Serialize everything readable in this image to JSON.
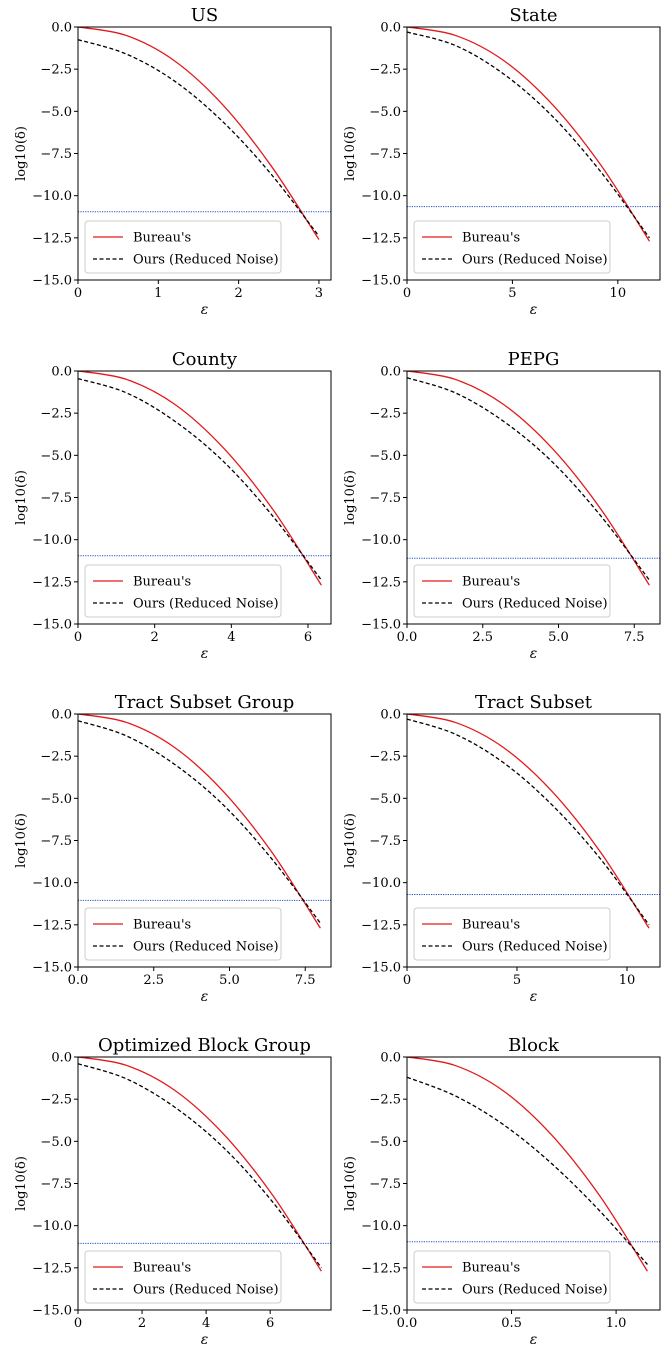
{
  "figure": {
    "xlabel": "ε",
    "ylabel": "log10(δ)",
    "legend": [
      "Bureau's",
      "Ours (Reduced Noise)"
    ],
    "legend_location": "lower-left",
    "colors": {
      "bureau": "#e31a1c",
      "ours": "#000000",
      "threshold": "#1f4fd1"
    }
  },
  "chart_data": [
    {
      "type": "line",
      "title": "US",
      "xlabel": "ε",
      "ylabel": "log10(δ)",
      "xlim": [
        0,
        3.15
      ],
      "ylim": [
        -15,
        0
      ],
      "xticks": [
        0,
        1,
        2,
        3
      ],
      "xtick_labels": [
        "0",
        "1",
        "2",
        "3"
      ],
      "yticks": [
        0,
        -2.5,
        -5,
        -7.5,
        -10,
        -12.5,
        -15
      ],
      "ytick_labels": [
        "0.0",
        "−2.5",
        "−5.0",
        "−7.5",
        "−10.0",
        "−12.5",
        "−15.0"
      ],
      "threshold": -10.95,
      "series": [
        {
          "name": "Bureau's",
          "style": "solid",
          "x": [
            0,
            0.6,
            1.2,
            1.8,
            2.4,
            3.0
          ],
          "y": [
            0,
            -0.5,
            -2.0,
            -4.6,
            -8.2,
            -12.6
          ]
        },
        {
          "name": "Ours (Reduced Noise)",
          "style": "dashed",
          "x": [
            0,
            0.6,
            1.2,
            1.8,
            2.4,
            3.0
          ],
          "y": [
            -0.75,
            -1.6,
            -3.2,
            -5.6,
            -8.7,
            -12.4
          ]
        }
      ],
      "legend_location": "lower-left"
    },
    {
      "type": "line",
      "title": "State",
      "xlabel": "ε",
      "ylabel": "log10(δ)",
      "xlim": [
        0,
        12.0
      ],
      "ylim": [
        -15,
        0
      ],
      "xticks": [
        0,
        5,
        10
      ],
      "xtick_labels": [
        "0",
        "5",
        "10"
      ],
      "yticks": [
        0,
        -2.5,
        -5,
        -7.5,
        -10,
        -12.5,
        -15
      ],
      "ytick_labels": [
        "0.0",
        "−2.5",
        "−5.0",
        "−7.5",
        "−10.0",
        "−12.5",
        "−15.0"
      ],
      "threshold": -10.65,
      "series": [
        {
          "name": "Bureau's",
          "style": "solid",
          "x": [
            0,
            2.3,
            4.6,
            6.9,
            9.2,
            11.5
          ],
          "y": [
            0,
            -0.5,
            -2.0,
            -4.6,
            -8.2,
            -12.7
          ]
        },
        {
          "name": "Ours (Reduced Noise)",
          "style": "dashed",
          "x": [
            0,
            2.3,
            4.6,
            6.9,
            9.2,
            11.5
          ],
          "y": [
            -0.3,
            -1.1,
            -2.8,
            -5.3,
            -8.6,
            -12.5
          ]
        }
      ],
      "legend_location": "lower-left"
    },
    {
      "type": "line",
      "title": "County",
      "xlabel": "ε",
      "ylabel": "log10(δ)",
      "xlim": [
        0,
        6.6
      ],
      "ylim": [
        -15,
        0
      ],
      "xticks": [
        0,
        2,
        4,
        6
      ],
      "xtick_labels": [
        "0",
        "2",
        "4",
        "6"
      ],
      "yticks": [
        0,
        -2.5,
        -5,
        -7.5,
        -10,
        -12.5,
        -15
      ],
      "ytick_labels": [
        "0.0",
        "−2.5",
        "−5.0",
        "−7.5",
        "−10.0",
        "−12.5",
        "−15.0"
      ],
      "threshold": -10.95,
      "series": [
        {
          "name": "Bureau's",
          "style": "solid",
          "x": [
            0,
            1.27,
            2.54,
            3.81,
            5.08,
            6.35
          ],
          "y": [
            0,
            -0.5,
            -2.0,
            -4.6,
            -8.2,
            -12.7
          ]
        },
        {
          "name": "Ours (Reduced Noise)",
          "style": "dashed",
          "x": [
            0,
            1.27,
            2.54,
            3.81,
            5.08,
            6.35
          ],
          "y": [
            -0.45,
            -1.3,
            -3.0,
            -5.4,
            -8.6,
            -12.4
          ]
        }
      ],
      "legend_location": "lower-left"
    },
    {
      "type": "line",
      "title": "PEPG",
      "xlabel": "ε",
      "ylabel": "log10(δ)",
      "xlim": [
        0,
        8.35
      ],
      "ylim": [
        -15,
        0
      ],
      "xticks": [
        0,
        2.5,
        5,
        7.5
      ],
      "xtick_labels": [
        "0.0",
        "2.5",
        "5.0",
        "7.5"
      ],
      "yticks": [
        0,
        -2.5,
        -5,
        -7.5,
        -10,
        -12.5,
        -15
      ],
      "ytick_labels": [
        "0.0",
        "−2.5",
        "−5.0",
        "−7.5",
        "−10.0",
        "−12.5",
        "−15.0"
      ],
      "threshold": -11.1,
      "series": [
        {
          "name": "Bureau's",
          "style": "solid",
          "x": [
            0,
            1.6,
            3.2,
            4.8,
            6.4,
            8.0
          ],
          "y": [
            0,
            -0.5,
            -2.0,
            -4.6,
            -8.2,
            -12.7
          ]
        },
        {
          "name": "Ours (Reduced Noise)",
          "style": "dashed",
          "x": [
            0,
            1.6,
            3.2,
            4.8,
            6.4,
            8.0
          ],
          "y": [
            -0.4,
            -1.3,
            -3.0,
            -5.4,
            -8.6,
            -12.4
          ]
        }
      ],
      "legend_location": "lower-left"
    },
    {
      "type": "line",
      "title": "Tract Subset Group",
      "xlabel": "ε",
      "ylabel": "log10(δ)",
      "xlim": [
        0,
        8.35
      ],
      "ylim": [
        -15,
        0
      ],
      "xticks": [
        0,
        2.5,
        5,
        7.5
      ],
      "xtick_labels": [
        "0.0",
        "2.5",
        "5.0",
        "7.5"
      ],
      "yticks": [
        0,
        -2.5,
        -5,
        -7.5,
        -10,
        -12.5,
        -15
      ],
      "ytick_labels": [
        "0.0",
        "−2.5",
        "−5.0",
        "−7.5",
        "−10.0",
        "−12.5",
        "−15.0"
      ],
      "threshold": -11.05,
      "series": [
        {
          "name": "Bureau's",
          "style": "solid",
          "x": [
            0,
            1.6,
            3.2,
            4.8,
            6.4,
            8.0
          ],
          "y": [
            0,
            -0.5,
            -2.0,
            -4.6,
            -8.2,
            -12.7
          ]
        },
        {
          "name": "Ours (Reduced Noise)",
          "style": "dashed",
          "x": [
            0,
            1.6,
            3.2,
            4.8,
            6.4,
            8.0
          ],
          "y": [
            -0.4,
            -1.3,
            -3.0,
            -5.4,
            -8.6,
            -12.4
          ]
        }
      ],
      "legend_location": "lower-left"
    },
    {
      "type": "line",
      "title": "Tract Subset",
      "xlabel": "ε",
      "ylabel": "log10(δ)",
      "xlim": [
        0,
        11.5
      ],
      "ylim": [
        -15,
        0
      ],
      "xticks": [
        0,
        5,
        10
      ],
      "xtick_labels": [
        "0",
        "5",
        "10"
      ],
      "yticks": [
        0,
        -2.5,
        -5,
        -7.5,
        -10,
        -12.5,
        -15
      ],
      "ytick_labels": [
        "0.0",
        "−2.5",
        "−5.0",
        "−7.5",
        "−10.0",
        "−12.5",
        "−15.0"
      ],
      "threshold": -10.7,
      "series": [
        {
          "name": "Bureau's",
          "style": "solid",
          "x": [
            0,
            2.2,
            4.4,
            6.6,
            8.8,
            11.0
          ],
          "y": [
            0,
            -0.5,
            -2.0,
            -4.6,
            -8.2,
            -12.7
          ]
        },
        {
          "name": "Ours (Reduced Noise)",
          "style": "dashed",
          "x": [
            0,
            2.2,
            4.4,
            6.6,
            8.8,
            11.0
          ],
          "y": [
            -0.3,
            -1.2,
            -2.9,
            -5.4,
            -8.6,
            -12.5
          ]
        }
      ],
      "legend_location": "lower-left"
    },
    {
      "type": "line",
      "title": "Optimized Block Group",
      "xlabel": "ε",
      "ylabel": "log10(δ)",
      "xlim": [
        0,
        7.9
      ],
      "ylim": [
        -15,
        0
      ],
      "xticks": [
        0,
        2,
        4,
        6
      ],
      "xtick_labels": [
        "0",
        "2",
        "4",
        "6"
      ],
      "yticks": [
        0,
        -2.5,
        -5,
        -7.5,
        -10,
        -12.5,
        -15
      ],
      "ytick_labels": [
        "0.0",
        "−2.5",
        "−5.0",
        "−7.5",
        "−10.0",
        "−12.5",
        "−15.0"
      ],
      "threshold": -11.05,
      "series": [
        {
          "name": "Bureau's",
          "style": "solid",
          "x": [
            0,
            1.52,
            3.04,
            4.56,
            6.08,
            7.6
          ],
          "y": [
            0,
            -0.5,
            -2.0,
            -4.6,
            -8.2,
            -12.7
          ]
        },
        {
          "name": "Ours (Reduced Noise)",
          "style": "dashed",
          "x": [
            0,
            1.52,
            3.04,
            4.56,
            6.08,
            7.6
          ],
          "y": [
            -0.4,
            -1.3,
            -3.0,
            -5.4,
            -8.6,
            -12.5
          ]
        }
      ],
      "legend_location": "lower-left"
    },
    {
      "type": "line",
      "title": "Block",
      "xlabel": "ε",
      "ylabel": "log10(δ)",
      "xlim": [
        0,
        1.21
      ],
      "ylim": [
        -15,
        0
      ],
      "xticks": [
        0,
        0.5,
        1.0
      ],
      "xtick_labels": [
        "0.0",
        "0.5",
        "1.0"
      ],
      "yticks": [
        0,
        -2.5,
        -5,
        -7.5,
        -10,
        -12.5,
        -15
      ],
      "ytick_labels": [
        "0.0",
        "−2.5",
        "−5.0",
        "−7.5",
        "−10.0",
        "−12.5",
        "−15.0"
      ],
      "threshold": -10.95,
      "series": [
        {
          "name": "Bureau's",
          "style": "solid",
          "x": [
            0,
            0.23,
            0.46,
            0.69,
            0.92,
            1.15
          ],
          "y": [
            0,
            -0.5,
            -2.0,
            -4.6,
            -8.2,
            -12.7
          ]
        },
        {
          "name": "Ours (Reduced Noise)",
          "style": "dashed",
          "x": [
            0,
            0.23,
            0.46,
            0.69,
            0.92,
            1.15
          ],
          "y": [
            -1.2,
            -2.3,
            -4.0,
            -6.3,
            -9.1,
            -12.3
          ]
        }
      ],
      "legend_location": "lower-left"
    }
  ]
}
